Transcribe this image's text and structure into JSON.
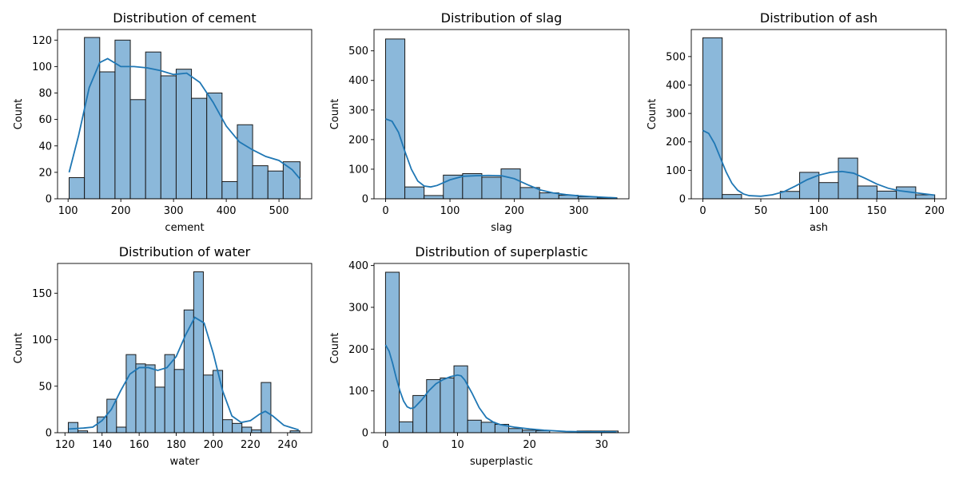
{
  "chart_data": [
    {
      "type": "bar",
      "variant": "histogram-with-kde",
      "title": "Distribution of cement",
      "xlabel": "cement",
      "ylabel": "Count",
      "xlim": [
        80,
        562
      ],
      "ylim": [
        0,
        128
      ],
      "xticks": [
        100,
        200,
        300,
        400,
        500
      ],
      "yticks": [
        0,
        20,
        40,
        60,
        80,
        100,
        120
      ],
      "bins": [
        [
          102,
          131,
          16
        ],
        [
          131,
          160,
          122
        ],
        [
          160,
          189,
          96
        ],
        [
          189,
          218,
          120
        ],
        [
          218,
          247,
          75
        ],
        [
          247,
          276,
          111
        ],
        [
          276,
          305,
          93
        ],
        [
          305,
          334,
          98
        ],
        [
          334,
          363,
          76
        ],
        [
          363,
          392,
          80
        ],
        [
          392,
          421,
          13
        ],
        [
          421,
          450,
          56
        ],
        [
          450,
          479,
          25
        ],
        [
          479,
          508,
          21
        ],
        [
          508,
          540,
          28
        ]
      ],
      "kde": [
        [
          102,
          20
        ],
        [
          120,
          48
        ],
        [
          140,
          84
        ],
        [
          160,
          103
        ],
        [
          175,
          106
        ],
        [
          200,
          100
        ],
        [
          225,
          100
        ],
        [
          250,
          99
        ],
        [
          275,
          97
        ],
        [
          300,
          94
        ],
        [
          325,
          95
        ],
        [
          350,
          88
        ],
        [
          375,
          73
        ],
        [
          400,
          55
        ],
        [
          425,
          43
        ],
        [
          450,
          37
        ],
        [
          475,
          32
        ],
        [
          500,
          29
        ],
        [
          525,
          22
        ],
        [
          540,
          15
        ]
      ],
      "color": "#1f77b4"
    },
    {
      "type": "bar",
      "variant": "histogram-with-kde",
      "title": "Distribution of slag",
      "xlabel": "slag",
      "ylabel": "Count",
      "xlim": [
        -18,
        378
      ],
      "ylim": [
        0,
        572
      ],
      "xticks": [
        0,
        100,
        200,
        300
      ],
      "yticks": [
        0,
        100,
        200,
        300,
        400,
        500
      ],
      "bins": [
        [
          0,
          29.9,
          540
        ],
        [
          29.9,
          59.8,
          40
        ],
        [
          59.8,
          89.7,
          11
        ],
        [
          89.7,
          119.6,
          80
        ],
        [
          119.6,
          149.5,
          85
        ],
        [
          149.5,
          179.4,
          73
        ],
        [
          179.4,
          209.3,
          101
        ],
        [
          209.3,
          239.2,
          38
        ],
        [
          239.2,
          269.1,
          20
        ],
        [
          269.1,
          299,
          12
        ],
        [
          299,
          328.9,
          7
        ],
        [
          328.9,
          359.4,
          3
        ]
      ],
      "kde": [
        [
          0,
          270
        ],
        [
          10,
          262
        ],
        [
          20,
          225
        ],
        [
          30,
          160
        ],
        [
          40,
          100
        ],
        [
          50,
          60
        ],
        [
          60,
          43
        ],
        [
          70,
          40
        ],
        [
          80,
          45
        ],
        [
          100,
          64
        ],
        [
          120,
          76
        ],
        [
          140,
          78
        ],
        [
          160,
          79
        ],
        [
          180,
          78
        ],
        [
          200,
          68
        ],
        [
          220,
          48
        ],
        [
          240,
          30
        ],
        [
          260,
          20
        ],
        [
          280,
          14
        ],
        [
          300,
          10
        ],
        [
          330,
          6
        ],
        [
          359,
          3
        ]
      ],
      "color": "#1f77b4"
    },
    {
      "type": "bar",
      "variant": "histogram-with-kde",
      "title": "Distribution of ash",
      "xlabel": "ash",
      "ylabel": "Count",
      "xlim": [
        -10,
        210
      ],
      "ylim": [
        0,
        595
      ],
      "xticks": [
        0,
        50,
        100,
        150,
        200
      ],
      "yticks": [
        0,
        100,
        200,
        300,
        400,
        500
      ],
      "bins": [
        [
          0,
          16.7,
          566
        ],
        [
          16.7,
          33.4,
          15
        ],
        [
          33.4,
          50.1,
          0
        ],
        [
          50.1,
          66.8,
          0
        ],
        [
          66.8,
          83.5,
          26
        ],
        [
          83.5,
          100.2,
          93
        ],
        [
          100.2,
          116.9,
          57
        ],
        [
          116.9,
          133.6,
          143
        ],
        [
          133.6,
          150.3,
          45
        ],
        [
          150.3,
          167,
          27
        ],
        [
          167,
          183.7,
          42
        ],
        [
          183.7,
          200.1,
          14
        ]
      ],
      "kde": [
        [
          0,
          240
        ],
        [
          5,
          230
        ],
        [
          10,
          195
        ],
        [
          15,
          145
        ],
        [
          20,
          95
        ],
        [
          25,
          55
        ],
        [
          30,
          30
        ],
        [
          35,
          17
        ],
        [
          40,
          11
        ],
        [
          50,
          9
        ],
        [
          60,
          14
        ],
        [
          70,
          25
        ],
        [
          80,
          45
        ],
        [
          90,
          67
        ],
        [
          100,
          83
        ],
        [
          110,
          93
        ],
        [
          120,
          96
        ],
        [
          130,
          90
        ],
        [
          140,
          72
        ],
        [
          150,
          52
        ],
        [
          160,
          37
        ],
        [
          170,
          28
        ],
        [
          180,
          23
        ],
        [
          190,
          18
        ],
        [
          200,
          13
        ]
      ],
      "color": "#1f77b4"
    },
    {
      "type": "bar",
      "variant": "histogram-with-kde",
      "title": "Distribution of water",
      "xlabel": "water",
      "ylabel": "Count",
      "xlim": [
        116,
        253
      ],
      "ylim": [
        0,
        182
      ],
      "xticks": [
        120,
        140,
        160,
        180,
        200,
        220,
        240
      ],
      "yticks": [
        0,
        50,
        100,
        150
      ],
      "bins": [
        [
          121.8,
          127,
          11
        ],
        [
          127,
          132.2,
          2
        ],
        [
          132.2,
          137.4,
          0
        ],
        [
          137.4,
          142.6,
          17
        ],
        [
          142.6,
          147.8,
          36
        ],
        [
          147.8,
          153,
          6
        ],
        [
          153,
          158.2,
          84
        ],
        [
          158.2,
          163.4,
          74
        ],
        [
          163.4,
          168.6,
          73
        ],
        [
          168.6,
          173.8,
          49
        ],
        [
          173.8,
          179,
          84
        ],
        [
          179,
          184.2,
          68
        ],
        [
          184.2,
          189.4,
          132
        ],
        [
          189.4,
          194.6,
          173
        ],
        [
          194.6,
          199.8,
          62
        ],
        [
          199.8,
          205,
          67
        ],
        [
          205,
          210.2,
          14
        ],
        [
          210.2,
          215.4,
          10
        ],
        [
          215.4,
          220.6,
          6
        ],
        [
          220.6,
          225.8,
          3
        ],
        [
          225.8,
          231,
          54
        ],
        [
          231,
          236.2,
          0
        ],
        [
          236.2,
          241.4,
          0
        ],
        [
          241.4,
          246.6,
          2
        ]
      ],
      "kde": [
        [
          122,
          4
        ],
        [
          130,
          5
        ],
        [
          135,
          6
        ],
        [
          140,
          13
        ],
        [
          145,
          25
        ],
        [
          150,
          45
        ],
        [
          155,
          63
        ],
        [
          160,
          70
        ],
        [
          165,
          70
        ],
        [
          170,
          67
        ],
        [
          175,
          70
        ],
        [
          180,
          82
        ],
        [
          185,
          105
        ],
        [
          190,
          124
        ],
        [
          195,
          118
        ],
        [
          200,
          85
        ],
        [
          205,
          45
        ],
        [
          210,
          18
        ],
        [
          215,
          11
        ],
        [
          220,
          13
        ],
        [
          225,
          20
        ],
        [
          228,
          23
        ],
        [
          232,
          18
        ],
        [
          238,
          8
        ],
        [
          246,
          3
        ]
      ],
      "color": "#1f77b4"
    },
    {
      "type": "bar",
      "variant": "histogram-with-kde",
      "title": "Distribution of superplastic",
      "xlabel": "superplastic",
      "ylabel": "Count",
      "xlim": [
        -1.6,
        33.8
      ],
      "ylim": [
        0,
        405
      ],
      "xticks": [
        0,
        10,
        20,
        30
      ],
      "yticks": [
        0,
        100,
        200,
        300,
        400
      ],
      "bins": [
        [
          0,
          1.9,
          384
        ],
        [
          1.9,
          3.8,
          26
        ],
        [
          3.8,
          5.7,
          89
        ],
        [
          5.7,
          7.6,
          127
        ],
        [
          7.6,
          9.5,
          131
        ],
        [
          9.5,
          11.4,
          160
        ],
        [
          11.4,
          13.3,
          30
        ],
        [
          13.3,
          15.2,
          25
        ],
        [
          15.2,
          17.1,
          20
        ],
        [
          17.1,
          19,
          10
        ],
        [
          19,
          20.9,
          6
        ],
        [
          20.9,
          22.8,
          5
        ],
        [
          22.8,
          24.7,
          0
        ],
        [
          24.7,
          26.6,
          0
        ],
        [
          26.6,
          28.5,
          4
        ],
        [
          28.5,
          30.4,
          4
        ],
        [
          30.4,
          32.3,
          4
        ]
      ],
      "kde": [
        [
          0,
          210
        ],
        [
          0.5,
          195
        ],
        [
          1,
          165
        ],
        [
          1.5,
          130
        ],
        [
          2,
          100
        ],
        [
          2.5,
          76
        ],
        [
          3,
          62
        ],
        [
          3.5,
          58
        ],
        [
          4,
          60
        ],
        [
          5,
          78
        ],
        [
          6,
          100
        ],
        [
          7,
          117
        ],
        [
          8,
          127
        ],
        [
          9,
          134
        ],
        [
          10,
          138
        ],
        [
          10.5,
          136
        ],
        [
          11,
          126
        ],
        [
          12,
          95
        ],
        [
          13,
          60
        ],
        [
          14,
          36
        ],
        [
          15,
          25
        ],
        [
          16,
          19
        ],
        [
          18,
          13
        ],
        [
          20,
          9
        ],
        [
          22,
          6
        ],
        [
          25,
          3
        ],
        [
          28,
          2
        ],
        [
          32,
          2
        ]
      ],
      "color": "#1f77b4"
    }
  ]
}
